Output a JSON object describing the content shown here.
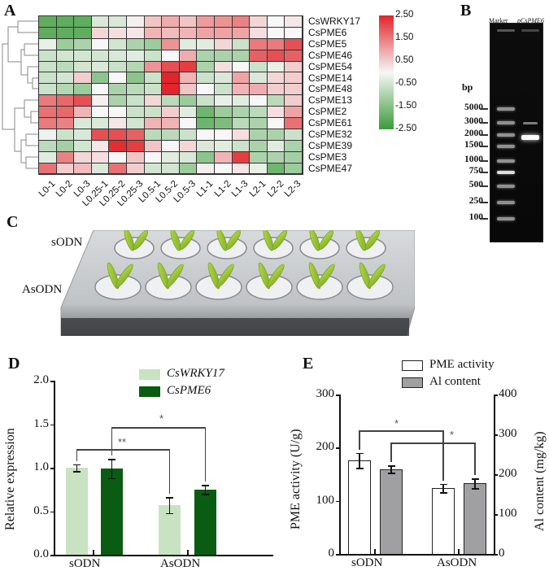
{
  "panels": {
    "A": "A",
    "B": "B",
    "C": "C",
    "D": "D",
    "E": "E"
  },
  "chart_data": [
    {
      "type": "heatmap",
      "panel": "A",
      "title": "",
      "columns": [
        "L0-1",
        "L0-2",
        "L0-3",
        "L0.25-1",
        "L0.25-2",
        "L0.25-3",
        "L0.5-1",
        "L0.5-2",
        "L0.5-3",
        "L1-1",
        "L1-2",
        "L1-3",
        "L2-1",
        "L2-2",
        "L2-3"
      ],
      "rows": [
        "CsWRKY17",
        "CsPME6",
        "CsPME5",
        "CsPME46",
        "CsPME54",
        "CsPME14",
        "CsPME48",
        "CsPME13",
        "CsPME2",
        "CsPME61",
        "CsPME32",
        "CsPME39",
        "CsPME3",
        "CsPME47"
      ],
      "values": [
        [
          -2.0,
          -2.0,
          -2.0,
          -0.4,
          -0.4,
          0.1,
          0.6,
          0.9,
          0.6,
          1.1,
          1.2,
          1.4,
          0.4,
          0.0,
          0.2
        ],
        [
          -2.0,
          -2.0,
          -2.0,
          0.4,
          0.3,
          0.2,
          0.8,
          0.7,
          0.8,
          1.0,
          1.0,
          1.0,
          0.3,
          0.0,
          0.0
        ],
        [
          -0.2,
          -1.2,
          -1.0,
          0.0,
          -0.5,
          -1.0,
          -1.2,
          1.2,
          -0.3,
          -0.3,
          0.4,
          -0.6,
          1.5,
          1.5,
          2.0
        ],
        [
          -0.6,
          -0.5,
          -0.5,
          -0.5,
          -0.4,
          -0.3,
          -0.6,
          0.0,
          0.9,
          -1.0,
          -1.0,
          -1.0,
          1.8,
          2.0,
          1.8
        ],
        [
          -0.6,
          -0.8,
          -0.5,
          -0.4,
          -0.6,
          -0.9,
          1.2,
          2.0,
          2.2,
          -1.0,
          0.3,
          0.0,
          -0.6,
          -0.2,
          0.5
        ],
        [
          -0.6,
          -0.5,
          0.5,
          -1.4,
          0.0,
          -1.4,
          -0.6,
          2.5,
          0.8,
          -0.6,
          -0.4,
          1.0,
          -0.4,
          0.4,
          0.5
        ],
        [
          -0.6,
          -0.9,
          -1.2,
          0.0,
          -1.0,
          -0.8,
          -0.6,
          2.5,
          0.6,
          0.0,
          -0.6,
          0.8,
          0.9,
          0.5,
          0.5
        ],
        [
          1.5,
          1.7,
          2.0,
          0.1,
          -1.0,
          -0.6,
          0.4,
          -0.8,
          -1.2,
          -0.6,
          -0.2,
          -0.3,
          0.0,
          -0.8,
          0.5
        ],
        [
          1.6,
          1.7,
          0.8,
          0.0,
          0.0,
          -0.6,
          -0.6,
          0.5,
          -0.3,
          -1.8,
          -1.2,
          -1.0,
          -0.8,
          0.3,
          1.0
        ],
        [
          1.5,
          1.4,
          -0.4,
          -0.4,
          0.2,
          -0.5,
          0.8,
          0.8,
          0.0,
          -1.8,
          -1.6,
          -0.8,
          -1.0,
          0.0,
          1.6
        ],
        [
          -0.1,
          -0.6,
          -0.4,
          2.0,
          2.0,
          1.8,
          -0.8,
          -0.8,
          -0.6,
          0.0,
          0.0,
          0.3,
          -1.0,
          -1.0,
          -0.6
        ],
        [
          -0.8,
          -1.1,
          -0.5,
          0.2,
          2.4,
          2.2,
          0.6,
          0.0,
          0.4,
          -0.4,
          -0.3,
          -0.6,
          -1.0,
          -0.3,
          -1.0
        ],
        [
          -0.3,
          1.4,
          0.4,
          0.3,
          0.0,
          0.6,
          0.0,
          -0.3,
          -0.4,
          -1.4,
          0.8,
          2.2,
          -1.0,
          -1.0,
          -1.1
        ],
        [
          1.6,
          0.5,
          0.7,
          -0.4,
          1.6,
          0.5,
          -0.5,
          -0.5,
          -1.2,
          0.1,
          0.0,
          0.2,
          -0.2,
          -1.8,
          -1.2
        ]
      ],
      "colorbar": {
        "ticks": [
          "2.50",
          "1.50",
          "0.50",
          "-0.50",
          "-1.50",
          "-2.50"
        ],
        "range": [
          -2.5,
          2.5
        ],
        "high_color": "#e0262b",
        "mid_color": "#f7f7f7",
        "low_color": "#3a9b3a"
      }
    },
    {
      "type": "bar",
      "panel": "D",
      "categories": [
        "sODN",
        "AsODN"
      ],
      "series": [
        {
          "name": "CsWRKY17",
          "color": "#c8e2c2",
          "values": [
            1.0,
            0.57
          ],
          "errors": [
            0.04,
            0.09
          ]
        },
        {
          "name": "CsPME6",
          "color": "#0a5c12",
          "values": [
            0.99,
            0.75
          ],
          "errors": [
            0.11,
            0.05
          ]
        }
      ],
      "ylabel": "Relative expression",
      "xlabel": "",
      "ylim": [
        0,
        2.0
      ],
      "yticks": [
        "0.0",
        "0.5",
        "1.0",
        "1.5",
        "2.0"
      ],
      "annotations": [
        {
          "text": "**",
          "between": [
            "sODN CsWRKY17",
            "AsODN CsWRKY17"
          ]
        },
        {
          "text": "*",
          "between": [
            "sODN CsPME6",
            "AsODN CsPME6"
          ]
        }
      ],
      "legend_position": "top-right"
    },
    {
      "type": "bar",
      "panel": "E",
      "categories": [
        "sODN",
        "AsODN"
      ],
      "series": [
        {
          "name": "PME activity",
          "color": "#ffffff",
          "axis": "left",
          "values": [
            176,
            124
          ],
          "errors": [
            14,
            8
          ]
        },
        {
          "name": "Al content",
          "color": "#a0a0a2",
          "axis": "right",
          "values": [
            213,
            177
          ],
          "errors": [
            9,
            12
          ]
        }
      ],
      "ylabel": "PME activity (U/g)",
      "ylabel_right": "Al content (mg/kg)",
      "ylim": [
        0,
        300
      ],
      "ylim_right": [
        0,
        400
      ],
      "yticks": [
        "0",
        "100",
        "200",
        "300"
      ],
      "yticks_right": [
        "0",
        "100",
        "200",
        "300",
        "400"
      ],
      "annotations": [
        {
          "text": "*",
          "between": [
            "sODN PME activity",
            "AsODN PME activity"
          ]
        },
        {
          "text": "*",
          "between": [
            "sODN Al content",
            "AsODN Al content"
          ]
        }
      ],
      "legend_position": "top"
    }
  ],
  "gel": {
    "lane_labels": [
      "Marker",
      "pCsPME6"
    ],
    "unit": "bp",
    "ladder": [
      "5000",
      "3000",
      "2000",
      "1500",
      "1000",
      "750",
      "500",
      "250",
      "100"
    ]
  },
  "photo": {
    "row_labels": [
      "sODN",
      "AsODN"
    ]
  }
}
